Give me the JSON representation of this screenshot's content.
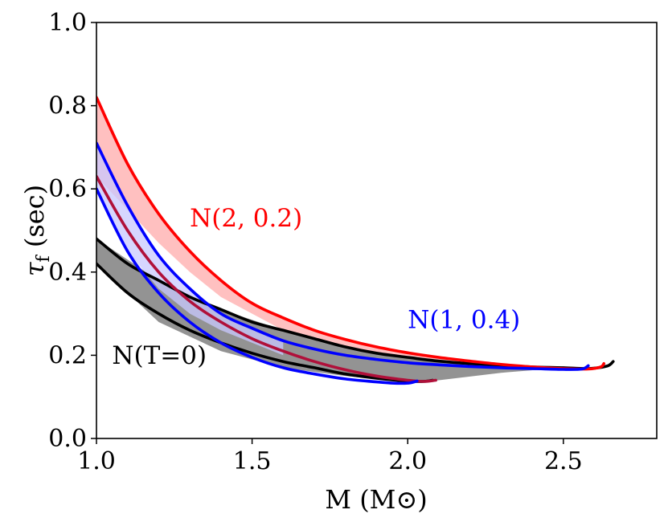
{
  "chart_data": {
    "type": "line",
    "xlabel": "M (M⊙)",
    "ylabel_main": "τ",
    "ylabel_sub": "f",
    "ylabel_rest": " (sec)",
    "xlim": [
      1.0,
      2.8
    ],
    "ylim": [
      0.0,
      1.0
    ],
    "xticks": [
      "1.0",
      "1.5",
      "2.0",
      "2.5"
    ],
    "yticks": [
      "0.0",
      "0.2",
      "0.4",
      "0.6",
      "0.8",
      "1.0"
    ],
    "grid": false,
    "annotations": [
      {
        "text": "N(2, 0.2)",
        "x": 1.3,
        "y": 0.51,
        "color": "#ff0000"
      },
      {
        "text": "N(1, 0.4)",
        "x": 2.0,
        "y": 0.265,
        "color": "#0000ff"
      },
      {
        "text": "N(T=0)",
        "x": 1.05,
        "y": 0.18,
        "color": "#000000"
      }
    ],
    "bands": [
      {
        "group": "T=0",
        "color": "#808080",
        "opacity": 0.85,
        "upper": [
          [
            1.0,
            0.48
          ],
          [
            1.2,
            0.38
          ],
          [
            1.4,
            0.31
          ],
          [
            1.6,
            0.26
          ],
          [
            1.8,
            0.22
          ],
          [
            2.0,
            0.195
          ],
          [
            2.2,
            0.18
          ],
          [
            2.4,
            0.172
          ],
          [
            2.5,
            0.17
          ]
        ],
        "lower": [
          [
            2.5,
            0.17
          ],
          [
            2.3,
            0.158
          ],
          [
            2.1,
            0.14
          ],
          [
            2.0,
            0.135
          ],
          [
            1.8,
            0.15
          ],
          [
            1.6,
            0.17
          ],
          [
            1.4,
            0.21
          ],
          [
            1.2,
            0.28
          ],
          [
            1.0,
            0.42
          ]
        ]
      },
      {
        "group": "N(2, 0.2)",
        "color": "#ffb0b0",
        "opacity": 0.8,
        "upper": [
          [
            1.0,
            0.82
          ],
          [
            1.1,
            0.66
          ],
          [
            1.2,
            0.54
          ],
          [
            1.3,
            0.45
          ],
          [
            1.4,
            0.38
          ],
          [
            1.5,
            0.325
          ],
          [
            1.7,
            0.26
          ],
          [
            1.9,
            0.22
          ],
          [
            2.1,
            0.195
          ],
          [
            2.3,
            0.178
          ],
          [
            2.5,
            0.168
          ],
          [
            2.6,
            0.168
          ]
        ],
        "lower": [
          [
            2.6,
            0.168
          ],
          [
            2.4,
            0.17
          ],
          [
            2.2,
            0.18
          ],
          [
            2.0,
            0.195
          ],
          [
            1.8,
            0.22
          ],
          [
            1.6,
            0.26
          ],
          [
            1.4,
            0.34
          ],
          [
            1.3,
            0.4
          ],
          [
            1.2,
            0.47
          ],
          [
            1.1,
            0.55
          ],
          [
            1.0,
            0.63
          ]
        ]
      },
      {
        "group": "N(1, 0.4)",
        "color": "#c8c8ff",
        "opacity": 0.75,
        "upper": [
          [
            1.0,
            0.71
          ],
          [
            1.1,
            0.56
          ],
          [
            1.2,
            0.44
          ],
          [
            1.3,
            0.36
          ],
          [
            1.4,
            0.3
          ],
          [
            1.5,
            0.265
          ],
          [
            1.6,
            0.235
          ]
        ],
        "lower": [
          [
            1.6,
            0.2
          ],
          [
            1.4,
            0.26
          ],
          [
            1.3,
            0.3
          ],
          [
            1.2,
            0.36
          ],
          [
            1.1,
            0.45
          ],
          [
            1.0,
            0.6
          ]
        ]
      }
    ],
    "series": [
      {
        "group": "T=0",
        "color": "#000000",
        "points": [
          [
            1.0,
            0.48
          ],
          [
            1.1,
            0.42
          ],
          [
            1.2,
            0.38
          ],
          [
            1.3,
            0.34
          ],
          [
            1.4,
            0.31
          ],
          [
            1.5,
            0.28
          ],
          [
            1.6,
            0.26
          ],
          [
            1.7,
            0.24
          ],
          [
            1.8,
            0.22
          ],
          [
            1.9,
            0.205
          ],
          [
            2.0,
            0.195
          ],
          [
            2.1,
            0.186
          ],
          [
            2.2,
            0.18
          ],
          [
            2.3,
            0.176
          ],
          [
            2.4,
            0.172
          ],
          [
            2.5,
            0.17
          ],
          [
            2.58,
            0.168
          ],
          [
            2.64,
            0.174
          ],
          [
            2.66,
            0.185
          ]
        ]
      },
      {
        "group": "T=0",
        "color": "#000000",
        "points": [
          [
            1.0,
            0.42
          ],
          [
            1.1,
            0.35
          ],
          [
            1.2,
            0.3
          ],
          [
            1.3,
            0.26
          ],
          [
            1.4,
            0.23
          ],
          [
            1.5,
            0.205
          ],
          [
            1.6,
            0.185
          ],
          [
            1.7,
            0.17
          ],
          [
            1.8,
            0.155
          ],
          [
            1.9,
            0.145
          ],
          [
            2.0,
            0.138
          ],
          [
            2.05,
            0.137
          ],
          [
            2.08,
            0.14
          ]
        ]
      },
      {
        "group": "N(2, 0.2)",
        "color": "#ff0000",
        "points": [
          [
            1.0,
            0.82
          ],
          [
            1.1,
            0.66
          ],
          [
            1.2,
            0.54
          ],
          [
            1.3,
            0.45
          ],
          [
            1.4,
            0.38
          ],
          [
            1.5,
            0.325
          ],
          [
            1.6,
            0.29
          ],
          [
            1.7,
            0.26
          ],
          [
            1.8,
            0.238
          ],
          [
            1.9,
            0.22
          ],
          [
            2.0,
            0.206
          ],
          [
            2.1,
            0.195
          ],
          [
            2.2,
            0.186
          ],
          [
            2.3,
            0.178
          ],
          [
            2.4,
            0.172
          ],
          [
            2.5,
            0.168
          ],
          [
            2.58,
            0.167
          ],
          [
            2.62,
            0.172
          ],
          [
            2.63,
            0.18
          ]
        ]
      },
      {
        "group": "N(2, 0.2)",
        "color": "#b0103a",
        "points": [
          [
            1.0,
            0.63
          ],
          [
            1.1,
            0.5
          ],
          [
            1.2,
            0.4
          ],
          [
            1.3,
            0.33
          ],
          [
            1.4,
            0.28
          ],
          [
            1.5,
            0.24
          ],
          [
            1.6,
            0.21
          ],
          [
            1.7,
            0.185
          ],
          [
            1.8,
            0.165
          ],
          [
            1.9,
            0.15
          ],
          [
            2.0,
            0.14
          ],
          [
            2.05,
            0.137
          ],
          [
            2.09,
            0.14
          ]
        ]
      },
      {
        "group": "N(1, 0.4)",
        "color": "#0000ff",
        "points": [
          [
            1.0,
            0.71
          ],
          [
            1.1,
            0.56
          ],
          [
            1.2,
            0.44
          ],
          [
            1.3,
            0.36
          ],
          [
            1.4,
            0.3
          ],
          [
            1.5,
            0.265
          ],
          [
            1.6,
            0.235
          ],
          [
            1.7,
            0.215
          ],
          [
            1.8,
            0.2
          ],
          [
            1.9,
            0.19
          ],
          [
            2.0,
            0.182
          ],
          [
            2.1,
            0.177
          ],
          [
            2.2,
            0.173
          ],
          [
            2.3,
            0.17
          ],
          [
            2.4,
            0.168
          ],
          [
            2.5,
            0.166
          ],
          [
            2.56,
            0.167
          ],
          [
            2.58,
            0.175
          ]
        ]
      },
      {
        "group": "N(1, 0.4)",
        "color": "#0000ff",
        "points": [
          [
            1.0,
            0.6
          ],
          [
            1.1,
            0.45
          ],
          [
            1.2,
            0.35
          ],
          [
            1.3,
            0.28
          ],
          [
            1.4,
            0.23
          ],
          [
            1.5,
            0.195
          ],
          [
            1.6,
            0.17
          ],
          [
            1.7,
            0.155
          ],
          [
            1.8,
            0.143
          ],
          [
            1.9,
            0.136
          ],
          [
            1.95,
            0.133
          ],
          [
            2.0,
            0.133
          ],
          [
            2.03,
            0.138
          ]
        ]
      }
    ]
  }
}
